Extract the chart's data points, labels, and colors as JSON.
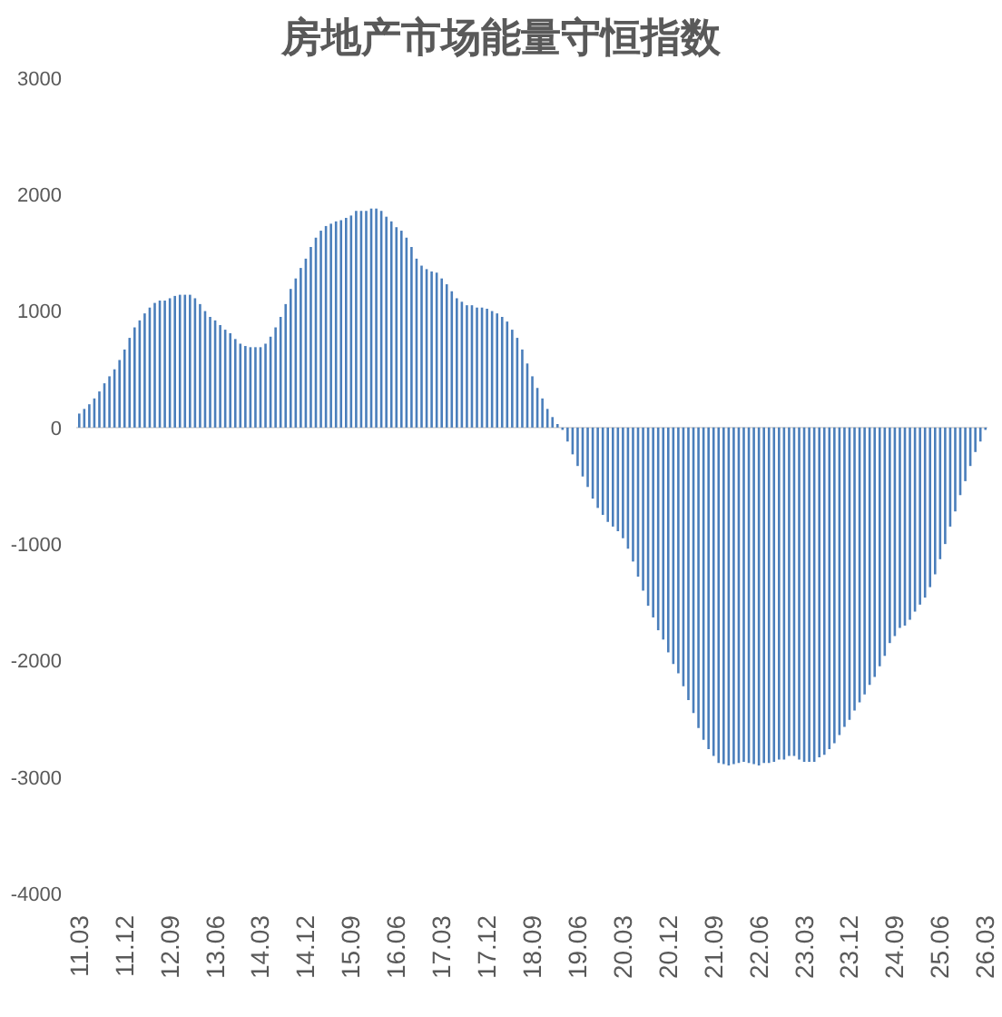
{
  "chart_data": {
    "type": "bar",
    "title": "房地产市场能量守恒指数",
    "categories": [
      "11.03",
      null,
      null,
      null,
      null,
      null,
      null,
      null,
      null,
      "11.12",
      null,
      null,
      null,
      null,
      null,
      null,
      null,
      null,
      "12.09",
      null,
      null,
      null,
      null,
      null,
      null,
      null,
      null,
      "13.06",
      null,
      null,
      null,
      null,
      null,
      null,
      null,
      null,
      "14.03",
      null,
      null,
      null,
      null,
      null,
      null,
      null,
      null,
      "14.12",
      null,
      null,
      null,
      null,
      null,
      null,
      null,
      null,
      "15.09",
      null,
      null,
      null,
      null,
      null,
      null,
      null,
      null,
      "16.06",
      null,
      null,
      null,
      null,
      null,
      null,
      null,
      null,
      "17.03",
      null,
      null,
      null,
      null,
      null,
      null,
      null,
      null,
      "17.12",
      null,
      null,
      null,
      null,
      null,
      null,
      null,
      null,
      "18.09",
      null,
      null,
      null,
      null,
      null,
      null,
      null,
      null,
      "19.06",
      null,
      null,
      null,
      null,
      null,
      null,
      null,
      null,
      "20.03",
      null,
      null,
      null,
      null,
      null,
      null,
      null,
      null,
      "20.12",
      null,
      null,
      null,
      null,
      null,
      null,
      null,
      null,
      "21.09",
      null,
      null,
      null,
      null,
      null,
      null,
      null,
      null,
      "22.06",
      null,
      null,
      null,
      null,
      null,
      null,
      null,
      null,
      "23.03",
      null,
      null,
      null,
      null,
      null,
      null,
      null,
      null,
      "23.12",
      null,
      null,
      null,
      null,
      null,
      null,
      null,
      null,
      "24.09",
      null,
      null,
      null,
      null,
      null,
      null,
      null,
      null,
      "25.06",
      null,
      null,
      null,
      null,
      null,
      null,
      null,
      null,
      "26.03"
    ],
    "values": [
      120,
      160,
      200,
      250,
      310,
      380,
      440,
      500,
      580,
      670,
      770,
      860,
      920,
      980,
      1030,
      1070,
      1090,
      1090,
      1110,
      1130,
      1140,
      1140,
      1140,
      1110,
      1060,
      1000,
      950,
      920,
      880,
      840,
      810,
      760,
      720,
      700,
      690,
      690,
      690,
      720,
      780,
      860,
      950,
      1060,
      1190,
      1280,
      1370,
      1450,
      1550,
      1630,
      1690,
      1730,
      1750,
      1770,
      1780,
      1800,
      1820,
      1860,
      1860,
      1860,
      1880,
      1880,
      1860,
      1810,
      1770,
      1720,
      1690,
      1630,
      1550,
      1450,
      1390,
      1360,
      1340,
      1330,
      1280,
      1230,
      1170,
      1110,
      1080,
      1050,
      1050,
      1030,
      1030,
      1020,
      1000,
      980,
      950,
      910,
      840,
      770,
      670,
      550,
      440,
      340,
      250,
      160,
      90,
      30,
      -20,
      -120,
      -230,
      -330,
      -420,
      -510,
      -610,
      -690,
      -750,
      -810,
      -850,
      -890,
      -950,
      -1040,
      -1150,
      -1280,
      -1400,
      -1530,
      -1630,
      -1740,
      -1820,
      -1930,
      -2030,
      -2110,
      -2220,
      -2340,
      -2450,
      -2580,
      -2680,
      -2760,
      -2820,
      -2880,
      -2890,
      -2900,
      -2890,
      -2880,
      -2870,
      -2880,
      -2890,
      -2900,
      -2880,
      -2880,
      -2870,
      -2850,
      -2850,
      -2820,
      -2820,
      -2850,
      -2870,
      -2870,
      -2870,
      -2830,
      -2810,
      -2760,
      -2710,
      -2640,
      -2570,
      -2510,
      -2430,
      -2360,
      -2290,
      -2210,
      -2140,
      -2050,
      -1960,
      -1850,
      -1790,
      -1720,
      -1700,
      -1650,
      -1580,
      -1520,
      -1460,
      -1370,
      -1260,
      -1130,
      -1000,
      -850,
      -720,
      -580,
      -460,
      -330,
      -210,
      -120,
      -20
    ],
    "color": "#4a7ebb",
    "ylim": [
      -4000,
      3000
    ],
    "yticks": [
      -4000,
      -3000,
      -2000,
      -1000,
      0,
      1000,
      2000,
      3000
    ]
  }
}
